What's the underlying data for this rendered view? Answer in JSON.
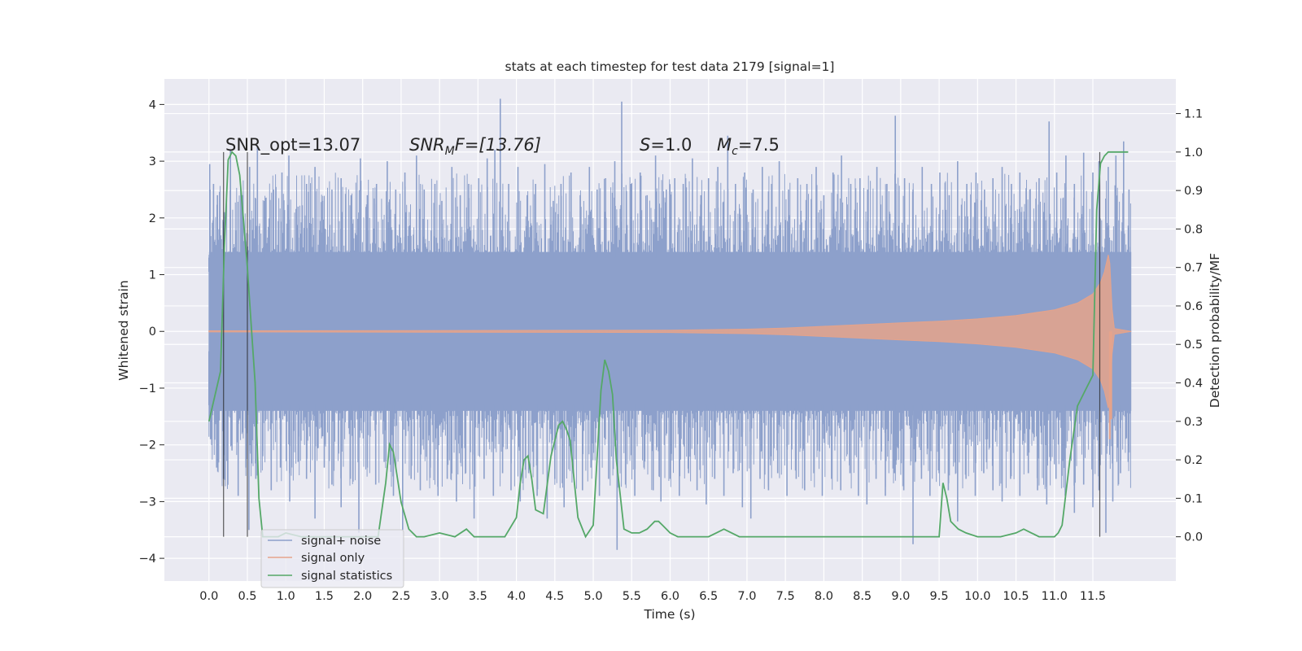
{
  "chart_data": {
    "type": "line",
    "title": "stats at each timestep for test data 2179 [signal=1]",
    "xlabel": "Time (s)",
    "ylabel": "Whitened strain",
    "y2label": "Detection probability/MF",
    "xlim": [
      -0.58,
      12.58
    ],
    "ylim": [
      -4.4,
      4.45
    ],
    "y2lim": [
      -0.115,
      1.19
    ],
    "grid": true,
    "legend_position": "lower-left",
    "x_ticks": [
      "0.0",
      "0.5",
      "1.0",
      "1.5",
      "2.0",
      "2.5",
      "3.0",
      "3.5",
      "4.0",
      "4.5",
      "5.0",
      "5.5",
      "6.0",
      "6.5",
      "7.0",
      "7.5",
      "8.0",
      "8.5",
      "9.0",
      "9.5",
      "10.0",
      "10.5",
      "11.0",
      "11.5"
    ],
    "y_ticks": [
      "4",
      "3",
      "2",
      "1",
      "0",
      "−1",
      "−2",
      "−3",
      "−4"
    ],
    "y2_ticks": [
      "1.1",
      "1.0",
      "0.9",
      "0.8",
      "0.7",
      "0.6",
      "0.5",
      "0.4",
      "0.3",
      "0.2",
      "0.1",
      "0.0"
    ],
    "annotations": {
      "snr_opt": "SNR_opt=13.07",
      "snr_mf_main": "SNR",
      "snr_mf_sub": "M",
      "snr_mf_rest": "F=[13.76]",
      "s_main": "S",
      "s_rest": "=1.0",
      "mc_main": "M",
      "mc_sub": "c",
      "mc_rest": "=7.5"
    },
    "vertical_lines": [
      0.19,
      0.5,
      11.59
    ],
    "series": [
      {
        "name": "signal+ noise",
        "color": "#8da0cb",
        "x_range": [
          0.0,
          12.0
        ],
        "band": [
          -1.4,
          1.4
        ],
        "peaks_up": [
          [
            0.0,
            1.05
          ],
          [
            0.01,
            2.95
          ],
          [
            0.06,
            2.6
          ],
          [
            0.11,
            2.4
          ],
          [
            0.2,
            2.1
          ],
          [
            0.28,
            3.2
          ],
          [
            0.44,
            2.4
          ],
          [
            0.53,
            2.9
          ],
          [
            0.63,
            3.25
          ],
          [
            0.72,
            2.3
          ],
          [
            0.84,
            2.5
          ],
          [
            0.95,
            2.8
          ],
          [
            1.04,
            3.1
          ],
          [
            1.16,
            2.2
          ],
          [
            1.27,
            2.6
          ],
          [
            1.38,
            2.9
          ],
          [
            1.48,
            2.3
          ],
          [
            1.6,
            2.5
          ],
          [
            1.72,
            2.7
          ],
          [
            1.85,
            2.4
          ],
          [
            1.97,
            3.05
          ],
          [
            2.06,
            2.4
          ],
          [
            2.18,
            2.6
          ],
          [
            2.32,
            3.0
          ],
          [
            2.43,
            2.5
          ],
          [
            2.55,
            2.8
          ],
          [
            2.7,
            3.1
          ],
          [
            2.8,
            2.5
          ],
          [
            2.94,
            2.6
          ],
          [
            3.03,
            2.3
          ],
          [
            3.16,
            2.9
          ],
          [
            3.27,
            2.4
          ],
          [
            3.38,
            2.6
          ],
          [
            3.51,
            2.7
          ],
          [
            3.62,
            3.05
          ],
          [
            3.72,
            3.2
          ],
          [
            3.79,
            4.1
          ],
          [
            3.9,
            2.6
          ],
          [
            4.02,
            2.9
          ],
          [
            4.14,
            2.4
          ],
          [
            4.25,
            2.6
          ],
          [
            4.37,
            2.95
          ],
          [
            4.48,
            2.3
          ],
          [
            4.58,
            2.6
          ],
          [
            4.71,
            2.8
          ],
          [
            4.83,
            2.4
          ],
          [
            4.95,
            2.9
          ],
          [
            5.05,
            2.5
          ],
          [
            5.16,
            2.7
          ],
          [
            5.28,
            3.0
          ],
          [
            5.37,
            4.05
          ],
          [
            5.49,
            2.6
          ],
          [
            5.61,
            2.8
          ],
          [
            5.7,
            2.4
          ],
          [
            5.81,
            3.1
          ],
          [
            5.95,
            2.5
          ],
          [
            6.06,
            2.7
          ],
          [
            6.17,
            2.6
          ],
          [
            6.29,
            3.05
          ],
          [
            6.4,
            2.4
          ],
          [
            6.5,
            2.7
          ],
          [
            6.62,
            2.9
          ],
          [
            6.75,
            3.45
          ],
          [
            6.85,
            2.6
          ],
          [
            6.97,
            2.8
          ],
          [
            7.08,
            2.5
          ],
          [
            7.2,
            2.9
          ],
          [
            7.32,
            2.6
          ],
          [
            7.42,
            3.0
          ],
          [
            7.54,
            2.5
          ],
          [
            7.66,
            2.7
          ],
          [
            7.78,
            2.6
          ],
          [
            7.9,
            2.9
          ],
          [
            8.0,
            2.4
          ],
          [
            8.12,
            2.8
          ],
          [
            8.23,
            3.1
          ],
          [
            8.35,
            2.6
          ],
          [
            8.47,
            2.7
          ],
          [
            8.57,
            2.5
          ],
          [
            8.69,
            2.9
          ],
          [
            8.82,
            2.6
          ],
          [
            8.93,
            3.8
          ],
          [
            9.05,
            2.7
          ],
          [
            9.16,
            2.5
          ],
          [
            9.28,
            2.9
          ],
          [
            9.4,
            2.6
          ],
          [
            9.51,
            2.8
          ],
          [
            9.63,
            2.4
          ],
          [
            9.74,
            3.0
          ],
          [
            9.86,
            2.6
          ],
          [
            9.98,
            2.8
          ],
          [
            10.09,
            2.5
          ],
          [
            10.2,
            2.7
          ],
          [
            10.32,
            2.9
          ],
          [
            10.44,
            2.6
          ],
          [
            10.55,
            2.8
          ],
          [
            10.68,
            2.5
          ],
          [
            10.8,
            2.7
          ],
          [
            10.93,
            3.7
          ],
          [
            11.03,
            2.8
          ],
          [
            11.15,
            3.1
          ],
          [
            11.26,
            2.6
          ],
          [
            11.38,
            3.15
          ],
          [
            11.5,
            2.8
          ],
          [
            11.58,
            3.0
          ],
          [
            11.7,
            2.9
          ],
          [
            11.8,
            3.1
          ],
          [
            11.9,
            3.35
          ],
          [
            11.97,
            2.5
          ]
        ],
        "peaks_down": [
          [
            0.0,
            -0.35
          ],
          [
            0.02,
            -1.9
          ],
          [
            0.1,
            -2.4
          ],
          [
            0.19,
            -2.6
          ],
          [
            0.3,
            -2.1
          ],
          [
            0.38,
            -2.9
          ],
          [
            0.48,
            -2.4
          ],
          [
            0.52,
            -3.5
          ],
          [
            0.61,
            -2.6
          ],
          [
            0.7,
            -2.2
          ],
          [
            0.81,
            -2.8
          ],
          [
            0.93,
            -2.4
          ],
          [
            1.05,
            -3.0
          ],
          [
            1.16,
            -2.3
          ],
          [
            1.27,
            -2.6
          ],
          [
            1.38,
            -3.3
          ],
          [
            1.5,
            -2.4
          ],
          [
            1.6,
            -2.7
          ],
          [
            1.72,
            -3.1
          ],
          [
            1.84,
            -2.6
          ],
          [
            1.95,
            -3.55
          ],
          [
            2.06,
            -2.4
          ],
          [
            2.17,
            -2.7
          ],
          [
            2.28,
            -2.3
          ],
          [
            2.4,
            -2.9
          ],
          [
            2.52,
            -3.5
          ],
          [
            2.63,
            -2.6
          ],
          [
            2.75,
            -2.8
          ],
          [
            2.88,
            -2.4
          ],
          [
            2.98,
            -2.9
          ],
          [
            3.1,
            -2.6
          ],
          [
            3.22,
            -3.0
          ],
          [
            3.34,
            -2.5
          ],
          [
            3.45,
            -3.3
          ],
          [
            3.58,
            -2.6
          ],
          [
            3.7,
            -2.9
          ],
          [
            3.82,
            -2.5
          ],
          [
            3.93,
            -2.8
          ],
          [
            4.05,
            -3.0
          ],
          [
            4.16,
            -2.5
          ],
          [
            4.27,
            -2.9
          ],
          [
            4.4,
            -3.3
          ],
          [
            4.5,
            -2.6
          ],
          [
            4.62,
            -3.1
          ],
          [
            4.74,
            -2.5
          ],
          [
            4.86,
            -2.8
          ],
          [
            4.97,
            -2.4
          ],
          [
            5.08,
            -2.9
          ],
          [
            5.2,
            -2.6
          ],
          [
            5.31,
            -3.85
          ],
          [
            5.42,
            -2.7
          ],
          [
            5.54,
            -2.9
          ],
          [
            5.66,
            -2.4
          ],
          [
            5.78,
            -2.8
          ],
          [
            5.88,
            -3.0
          ],
          [
            6.0,
            -2.6
          ],
          [
            6.12,
            -2.9
          ],
          [
            6.24,
            -2.5
          ],
          [
            6.35,
            -2.8
          ],
          [
            6.47,
            -3.05
          ],
          [
            6.58,
            -2.6
          ],
          [
            6.7,
            -2.9
          ],
          [
            6.82,
            -2.5
          ],
          [
            6.94,
            -3.1
          ],
          [
            7.05,
            -3.3
          ],
          [
            7.17,
            -2.6
          ],
          [
            7.28,
            -2.8
          ],
          [
            7.4,
            -2.5
          ],
          [
            7.52,
            -2.9
          ],
          [
            7.64,
            -2.6
          ],
          [
            7.75,
            -2.8
          ],
          [
            7.87,
            -2.5
          ],
          [
            7.98,
            -2.9
          ],
          [
            8.1,
            -2.6
          ],
          [
            8.22,
            -2.8
          ],
          [
            8.34,
            -2.5
          ],
          [
            8.45,
            -2.9
          ],
          [
            8.56,
            -3.05
          ],
          [
            8.68,
            -2.6
          ],
          [
            8.8,
            -2.9
          ],
          [
            8.92,
            -2.5
          ],
          [
            9.04,
            -2.8
          ],
          [
            9.16,
            -3.75
          ],
          [
            9.27,
            -2.6
          ],
          [
            9.38,
            -2.9
          ],
          [
            9.5,
            -2.5
          ],
          [
            9.62,
            -2.8
          ],
          [
            9.74,
            -3.35
          ],
          [
            9.85,
            -2.6
          ],
          [
            9.97,
            -2.9
          ],
          [
            10.08,
            -2.5
          ],
          [
            10.2,
            -2.8
          ],
          [
            10.32,
            -3.0
          ],
          [
            10.43,
            -2.6
          ],
          [
            10.55,
            -2.9
          ],
          [
            10.66,
            -2.5
          ],
          [
            10.78,
            -2.8
          ],
          [
            10.9,
            -3.05
          ],
          [
            11.02,
            -2.6
          ],
          [
            11.14,
            -2.9
          ],
          [
            11.26,
            -3.2
          ],
          [
            11.38,
            -2.7
          ],
          [
            11.5,
            -3.1
          ],
          [
            11.58,
            -2.8
          ],
          [
            11.67,
            -3.55
          ],
          [
            11.76,
            -3.0
          ],
          [
            11.86,
            -2.5
          ],
          [
            11.96,
            -2.3
          ]
        ]
      },
      {
        "name": "signal only",
        "color": "#e5a38b",
        "x_range": [
          0.0,
          12.0
        ],
        "envelope": [
          [
            0.0,
            0.01
          ],
          [
            6.0,
            0.02
          ],
          [
            7.0,
            0.04
          ],
          [
            7.5,
            0.06
          ],
          [
            8.0,
            0.09
          ],
          [
            8.5,
            0.12
          ],
          [
            9.0,
            0.15
          ],
          [
            9.5,
            0.18
          ],
          [
            10.0,
            0.22
          ],
          [
            10.5,
            0.28
          ],
          [
            11.0,
            0.38
          ],
          [
            11.3,
            0.5
          ],
          [
            11.5,
            0.66
          ],
          [
            11.6,
            0.86
          ],
          [
            11.65,
            1.05
          ],
          [
            11.7,
            1.35
          ],
          [
            11.72,
            1.2
          ],
          [
            11.75,
            0.4
          ],
          [
            11.78,
            0.05
          ],
          [
            12.0,
            0.0
          ]
        ],
        "envelope_low_extra": [
          [
            11.72,
            -1.9
          ],
          [
            11.74,
            -1.55
          ]
        ]
      },
      {
        "name": "signal statistics",
        "color": "#55a868",
        "axis": "right",
        "x": [
          0.0,
          0.15,
          0.2,
          0.25,
          0.3,
          0.35,
          0.4,
          0.45,
          0.5,
          0.55,
          0.6,
          0.65,
          0.7,
          0.8,
          0.9,
          1.0,
          1.2,
          1.5,
          1.8,
          2.0,
          2.1,
          2.2,
          2.3,
          2.35,
          2.4,
          2.5,
          2.6,
          2.7,
          2.8,
          3.0,
          3.2,
          3.35,
          3.4,
          3.45,
          3.55,
          3.65,
          3.75,
          3.85,
          4.0,
          4.05,
          4.1,
          4.15,
          4.2,
          4.25,
          4.35,
          4.45,
          4.55,
          4.6,
          4.65,
          4.7,
          4.75,
          4.8,
          4.9,
          5.0,
          5.1,
          5.15,
          5.2,
          5.25,
          5.3,
          5.4,
          5.5,
          5.6,
          5.7,
          5.8,
          5.85,
          5.9,
          6.0,
          6.1,
          6.2,
          6.5,
          6.6,
          6.7,
          6.8,
          6.9,
          7.0,
          7.5,
          8.0,
          8.5,
          9.0,
          9.3,
          9.5,
          9.55,
          9.6,
          9.65,
          9.75,
          9.85,
          10.0,
          10.1,
          10.3,
          10.5,
          10.6,
          10.7,
          10.8,
          11.0,
          11.05,
          11.1,
          11.2,
          11.3,
          11.4,
          11.5,
          11.55,
          11.6,
          11.65,
          11.7,
          11.75,
          11.8,
          11.9,
          11.96
        ],
        "y": [
          0.3,
          0.43,
          0.75,
          0.98,
          1.0,
          0.99,
          0.94,
          0.82,
          0.7,
          0.55,
          0.4,
          0.1,
          0.0,
          0.0,
          0.0,
          0.01,
          0.0,
          0.0,
          0.0,
          0.0,
          0.0,
          0.0,
          0.14,
          0.24,
          0.22,
          0.09,
          0.02,
          0.0,
          0.0,
          0.01,
          0.0,
          0.02,
          0.01,
          0.0,
          0.0,
          0.0,
          0.0,
          0.0,
          0.05,
          0.14,
          0.2,
          0.21,
          0.15,
          0.07,
          0.06,
          0.21,
          0.29,
          0.3,
          0.28,
          0.25,
          0.15,
          0.05,
          0.0,
          0.03,
          0.38,
          0.46,
          0.43,
          0.37,
          0.2,
          0.02,
          0.01,
          0.01,
          0.02,
          0.04,
          0.04,
          0.03,
          0.01,
          0.0,
          0.0,
          0.0,
          0.01,
          0.02,
          0.01,
          0.0,
          0.0,
          0.0,
          0.0,
          0.0,
          0.0,
          0.0,
          0.0,
          0.14,
          0.1,
          0.04,
          0.02,
          0.01,
          0.0,
          0.0,
          0.0,
          0.01,
          0.02,
          0.01,
          0.0,
          0.0,
          0.01,
          0.03,
          0.2,
          0.34,
          0.38,
          0.42,
          0.85,
          0.97,
          0.99,
          1.0,
          1.0,
          1.0,
          1.0,
          1.0
        ]
      }
    ]
  }
}
